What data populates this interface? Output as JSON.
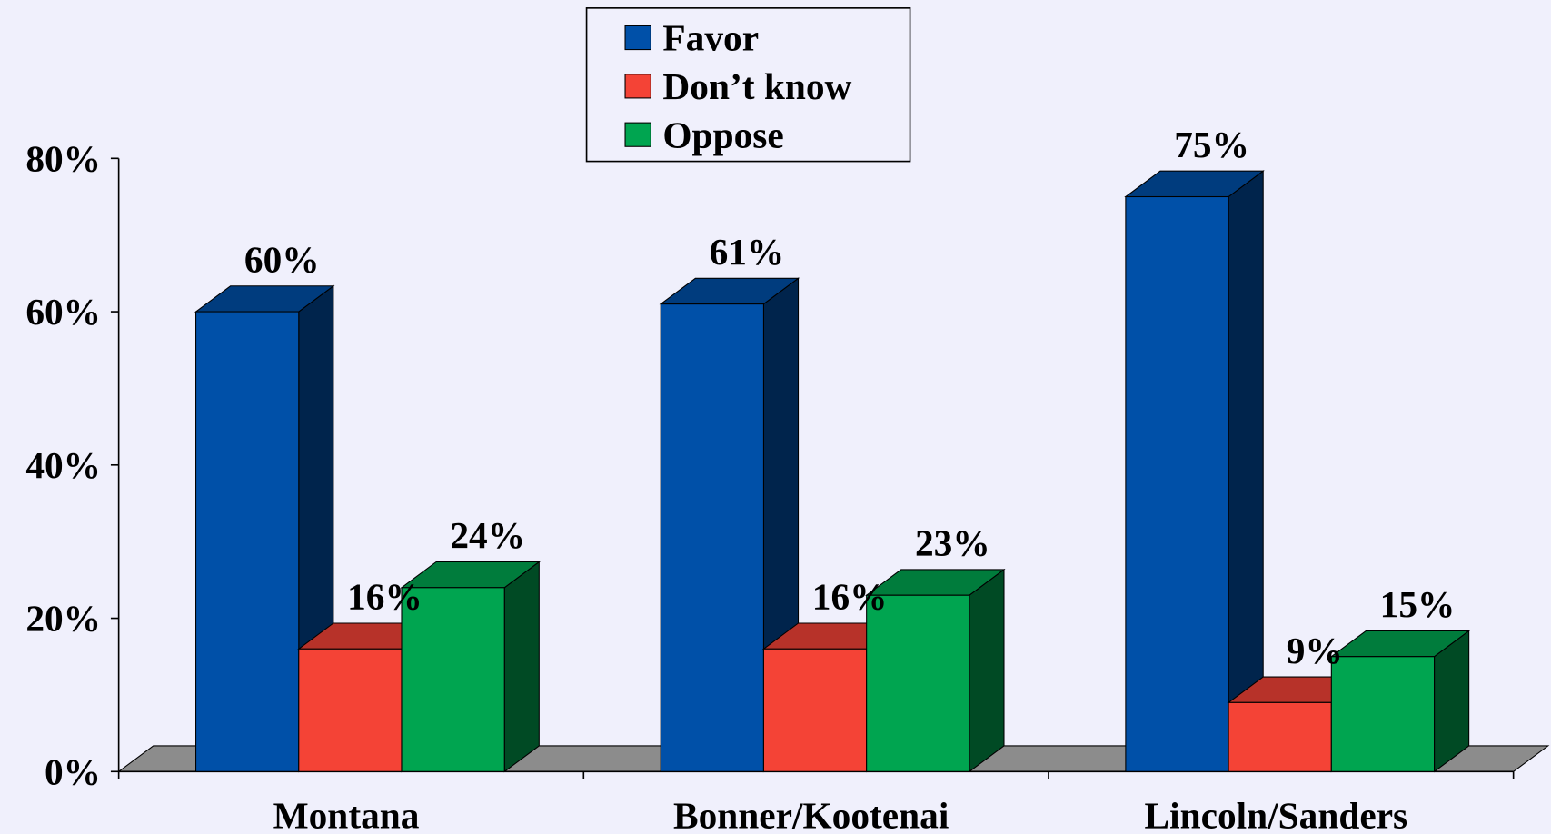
{
  "chart_data": {
    "type": "bar3d",
    "categories": [
      "Montana",
      "Bonner/Kootenai",
      "Lincoln/Sanders"
    ],
    "series": [
      {
        "name": "Favor",
        "color": "#0050a8",
        "values": [
          60,
          61,
          75
        ],
        "value_labels": [
          "60%",
          "61%",
          "75%"
        ]
      },
      {
        "name": "Don’t know",
        "color": "#f44336",
        "values": [
          16,
          16,
          9
        ],
        "value_labels": [
          "16%",
          "16%",
          "9%"
        ]
      },
      {
        "name": "Oppose",
        "color": "#00a550",
        "values": [
          24,
          23,
          15
        ],
        "value_labels": [
          "24%",
          "23%",
          "15%"
        ]
      }
    ],
    "ylim": [
      0,
      80
    ],
    "yticks": [
      {
        "value": 0,
        "label": "0%"
      },
      {
        "value": 20,
        "label": "20%"
      },
      {
        "value": 40,
        "label": "40%"
      },
      {
        "value": 60,
        "label": "60%"
      },
      {
        "value": 80,
        "label": "80%"
      }
    ],
    "legend": "top"
  }
}
